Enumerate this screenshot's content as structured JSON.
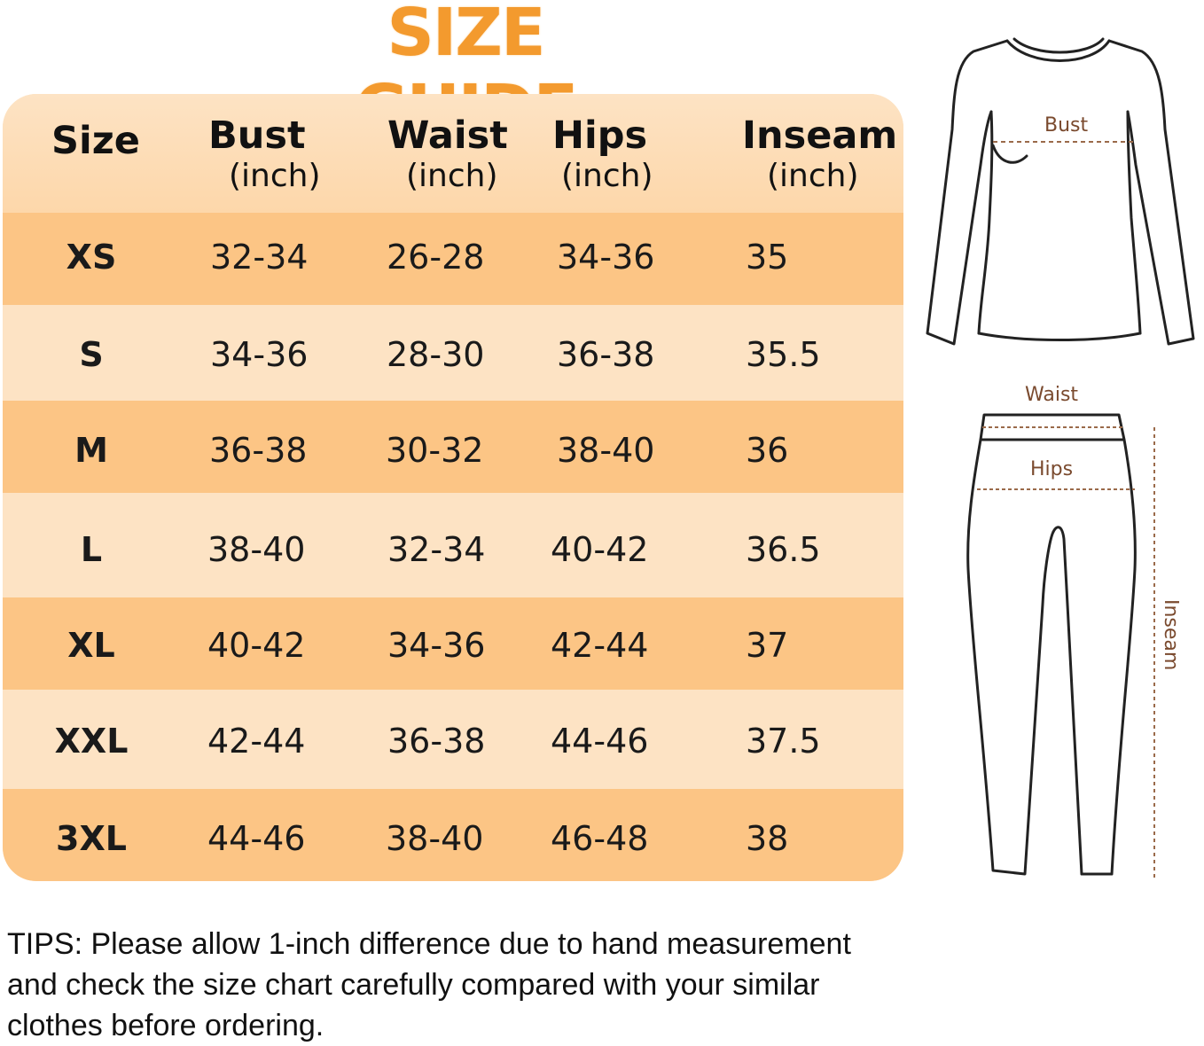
{
  "title": "SIZE GUIDE",
  "table": {
    "headers": [
      {
        "main": "Size",
        "sub": ""
      },
      {
        "main": "Bust",
        "sub": "(inch)"
      },
      {
        "main": "Waist",
        "sub": "(inch)"
      },
      {
        "main": "Hips",
        "sub": "(inch)"
      },
      {
        "main": "Inseam",
        "sub": "(inch)"
      }
    ],
    "rows": [
      [
        "XS",
        "32-34",
        "26-28",
        "34-36",
        "35"
      ],
      [
        "S",
        "34-36",
        "28-30",
        "36-38",
        "35.5"
      ],
      [
        "M",
        "36-38",
        "30-32",
        "38-40",
        "36"
      ],
      [
        "L",
        "38-40",
        "32-34",
        "40-42",
        "36.5"
      ],
      [
        "XL",
        "40-42",
        "34-36",
        "42-44",
        "37"
      ],
      [
        "XXL",
        "42-44",
        "36-38",
        "44-46",
        "37.5"
      ],
      [
        "3XL",
        "44-46",
        "38-40",
        "46-48",
        "38"
      ]
    ]
  },
  "diagram": {
    "bust_label": "Bust",
    "waist_label": "Waist",
    "hips_label": "Hips",
    "inseam_label": "Inseam"
  },
  "tips": {
    "line1": "TIPS: Please allow 1-inch difference due to hand measurement",
    "line2": "and check the size chart carefully compared with your similar",
    "line3": "clothes before ordering."
  },
  "colors": {
    "title": "#f39a2e",
    "row_dark": "#fcc585",
    "row_light": "#fde3c4",
    "measure_line": "#9a6a4a"
  }
}
